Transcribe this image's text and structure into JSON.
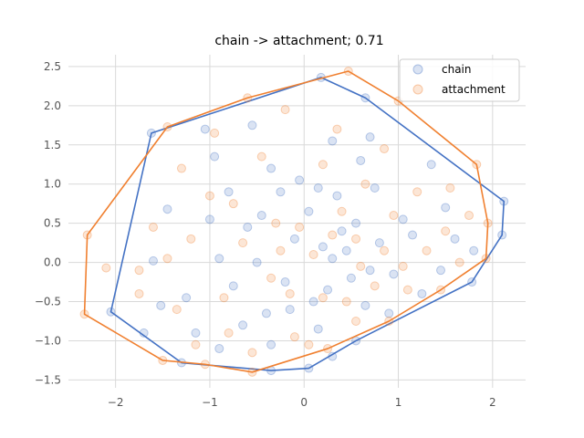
{
  "chart_data": {
    "type": "scatter",
    "title": "chain -> attachment; 0.71",
    "xlabel": "",
    "ylabel": "",
    "xlim": [
      -2.5,
      2.35
    ],
    "ylim": [
      -1.6,
      2.65
    ],
    "xticks": [
      -2,
      -1,
      0,
      1,
      2
    ],
    "xtick_labels": [
      "−2",
      "−1",
      "0",
      "1",
      "2"
    ],
    "yticks": [
      -1.5,
      -1.0,
      -0.5,
      0.0,
      0.5,
      1.0,
      1.5,
      2.0,
      2.5
    ],
    "ytick_labels": [
      "−1.5",
      "−1.0",
      "−0.5",
      "0.0",
      "0.5",
      "1.0",
      "1.5",
      "2.0",
      "2.5"
    ],
    "grid": true,
    "legend_position": "top-right",
    "series": [
      {
        "name": "chain",
        "color": "#4472c4",
        "hull": [
          [
            0.18,
            2.36
          ],
          [
            0.65,
            2.1
          ],
          [
            2.12,
            0.78
          ],
          [
            2.1,
            0.35
          ],
          [
            1.78,
            -0.25
          ],
          [
            0.55,
            -1.0
          ],
          [
            0.05,
            -1.35
          ],
          [
            -0.35,
            -1.38
          ],
          [
            -1.3,
            -1.28
          ],
          [
            -2.05,
            -0.63
          ],
          [
            -1.62,
            1.65
          ]
        ],
        "points": [
          [
            0.18,
            2.36
          ],
          [
            0.65,
            2.1
          ],
          [
            2.12,
            0.78
          ],
          [
            2.1,
            0.35
          ],
          [
            1.78,
            -0.25
          ],
          [
            0.55,
            -1.0
          ],
          [
            0.05,
            -1.35
          ],
          [
            -0.35,
            -1.38
          ],
          [
            -1.3,
            -1.28
          ],
          [
            -2.05,
            -0.63
          ],
          [
            -1.62,
            1.65
          ],
          [
            -1.05,
            1.7
          ],
          [
            -0.55,
            1.75
          ],
          [
            0.3,
            1.55
          ],
          [
            0.7,
            1.6
          ],
          [
            1.35,
            1.25
          ],
          [
            -1.45,
            0.68
          ],
          [
            -1.6,
            0.02
          ],
          [
            -1.52,
            -0.55
          ],
          [
            -1.7,
            -0.9
          ],
          [
            -1.25,
            -0.45
          ],
          [
            -0.8,
            0.9
          ],
          [
            -0.6,
            0.45
          ],
          [
            -0.9,
            0.05
          ],
          [
            -0.75,
            -0.3
          ],
          [
            -0.4,
            -0.65
          ],
          [
            0.15,
            -0.85
          ],
          [
            0.65,
            -0.55
          ],
          [
            0.95,
            -0.15
          ],
          [
            1.15,
            0.35
          ],
          [
            1.5,
            0.7
          ],
          [
            1.8,
            0.15
          ],
          [
            1.25,
            -0.4
          ],
          [
            0.2,
            0.2
          ],
          [
            0.4,
            0.4
          ],
          [
            0.5,
            -0.2
          ],
          [
            -0.1,
            0.3
          ],
          [
            -0.2,
            -0.25
          ],
          [
            0.05,
            0.65
          ],
          [
            0.35,
            0.85
          ],
          [
            0.75,
            0.95
          ],
          [
            -0.35,
            1.2
          ],
          [
            -0.95,
            1.35
          ],
          [
            -1.15,
            -0.9
          ],
          [
            -0.9,
            -1.1
          ],
          [
            -0.35,
            -1.05
          ],
          [
            0.3,
            -1.2
          ],
          [
            -0.5,
            0.0
          ],
          [
            0.1,
            -0.5
          ],
          [
            0.8,
            0.25
          ],
          [
            1.05,
            0.55
          ],
          [
            0.3,
            0.05
          ],
          [
            0.55,
            0.5
          ],
          [
            -0.25,
            0.9
          ],
          [
            0.9,
            -0.65
          ],
          [
            1.45,
            -0.1
          ],
          [
            -1.0,
            0.55
          ],
          [
            -0.65,
            -0.8
          ],
          [
            0.6,
            1.3
          ],
          [
            -0.05,
            1.05
          ],
          [
            1.6,
            0.3
          ],
          [
            0.25,
            -0.35
          ],
          [
            -0.15,
            -0.6
          ],
          [
            0.45,
            0.15
          ],
          [
            0.15,
            0.95
          ],
          [
            -0.45,
            0.6
          ],
          [
            0.7,
            -0.1
          ]
        ]
      },
      {
        "name": "attachment",
        "color": "#f08030",
        "hull": [
          [
            0.47,
            2.44
          ],
          [
            1.0,
            2.06
          ],
          [
            1.83,
            1.25
          ],
          [
            1.95,
            0.5
          ],
          [
            1.93,
            0.05
          ],
          [
            1.45,
            -0.35
          ],
          [
            0.9,
            -0.75
          ],
          [
            0.25,
            -1.1
          ],
          [
            -0.55,
            -1.4
          ],
          [
            -1.05,
            -1.3
          ],
          [
            -1.5,
            -1.25
          ],
          [
            -2.33,
            -0.66
          ],
          [
            -2.3,
            0.35
          ],
          [
            -1.45,
            1.73
          ],
          [
            -0.6,
            2.1
          ]
        ],
        "points": [
          [
            0.47,
            2.44
          ],
          [
            1.0,
            2.06
          ],
          [
            1.83,
            1.25
          ],
          [
            1.95,
            0.5
          ],
          [
            1.93,
            0.05
          ],
          [
            1.45,
            -0.35
          ],
          [
            0.9,
            -0.75
          ],
          [
            0.25,
            -1.1
          ],
          [
            -0.55,
            -1.4
          ],
          [
            -1.05,
            -1.3
          ],
          [
            -1.5,
            -1.25
          ],
          [
            -2.33,
            -0.66
          ],
          [
            -2.3,
            0.35
          ],
          [
            -1.45,
            1.73
          ],
          [
            -0.6,
            2.1
          ],
          [
            -2.1,
            -0.07
          ],
          [
            -1.75,
            -0.1
          ],
          [
            -1.6,
            0.45
          ],
          [
            -1.3,
            1.2
          ],
          [
            -0.95,
            1.65
          ],
          [
            -0.2,
            1.95
          ],
          [
            0.35,
            1.7
          ],
          [
            0.85,
            1.45
          ],
          [
            1.55,
            0.95
          ],
          [
            1.75,
            0.6
          ],
          [
            1.65,
            0.0
          ],
          [
            1.1,
            -0.35
          ],
          [
            0.55,
            -0.75
          ],
          [
            -0.1,
            -0.95
          ],
          [
            -0.8,
            -0.9
          ],
          [
            -1.35,
            -0.6
          ],
          [
            -1.75,
            -0.4
          ],
          [
            -1.2,
            0.3
          ],
          [
            -0.75,
            0.75
          ],
          [
            -0.3,
            0.5
          ],
          [
            0.1,
            0.1
          ],
          [
            0.55,
            0.3
          ],
          [
            0.95,
            0.6
          ],
          [
            1.3,
            0.15
          ],
          [
            0.75,
            -0.3
          ],
          [
            0.2,
            -0.45
          ],
          [
            -0.35,
            -0.2
          ],
          [
            -0.85,
            -0.45
          ],
          [
            -1.0,
            0.85
          ],
          [
            -0.45,
            1.35
          ],
          [
            0.2,
            1.25
          ],
          [
            0.65,
            1.0
          ],
          [
            1.2,
            0.9
          ],
          [
            -0.55,
            -1.15
          ],
          [
            -1.15,
            -1.05
          ],
          [
            -0.05,
            0.45
          ],
          [
            0.4,
            0.65
          ],
          [
            -0.15,
            -0.4
          ],
          [
            0.6,
            -0.05
          ],
          [
            1.5,
            0.4
          ],
          [
            -1.45,
            0.05
          ],
          [
            0.05,
            -1.05
          ],
          [
            -0.65,
            0.25
          ],
          [
            0.85,
            0.15
          ],
          [
            0.3,
            0.35
          ],
          [
            -0.25,
            0.15
          ],
          [
            1.05,
            -0.05
          ],
          [
            0.45,
            -0.5
          ]
        ]
      }
    ]
  }
}
